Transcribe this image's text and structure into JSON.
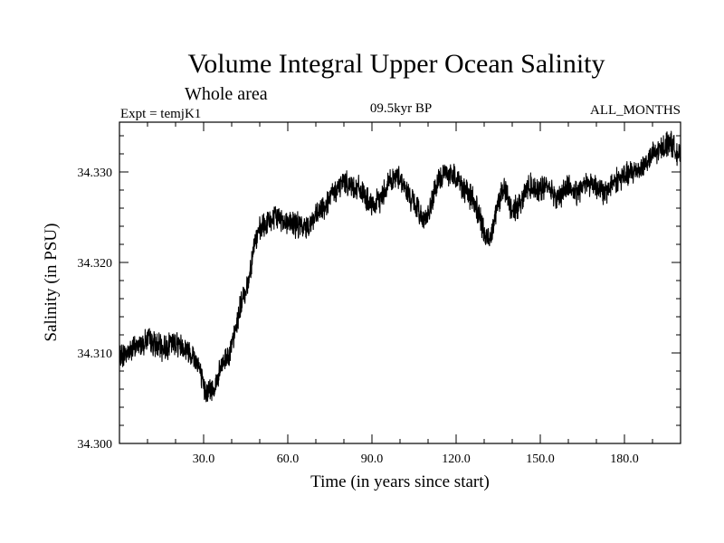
{
  "chart_data": {
    "type": "line",
    "title": "Volume Integral Upper Ocean Salinity",
    "subtitle": "Whole area",
    "annotations": {
      "left": "Expt = temjK1",
      "center": "09.5kyr BP",
      "right": "ALL_MONTHS"
    },
    "xlabel": "Time (in years since start)",
    "ylabel": "Salinity (in PSU)",
    "xlim": [
      0,
      200
    ],
    "ylim": [
      34.3,
      34.3355
    ],
    "x_ticks": [
      30,
      60,
      90,
      120,
      150,
      180
    ],
    "x_tick_labels": [
      "30.0",
      "60.0",
      "90.0",
      "120.0",
      "150.0",
      "180.0"
    ],
    "y_ticks": [
      34.3,
      34.31,
      34.32,
      34.33
    ],
    "y_tick_labels": [
      "34.300",
      "34.310",
      "34.320",
      "34.330"
    ],
    "grid": false,
    "series": [
      {
        "name": "Salinity",
        "color": "#000000",
        "x": [
          0,
          5,
          10,
          15,
          20,
          25,
          28,
          30,
          32,
          34,
          37,
          40,
          43,
          46,
          48,
          50,
          53,
          56,
          60,
          63,
          66,
          70,
          73,
          76,
          80,
          83,
          86,
          90,
          93,
          96,
          100,
          102,
          105,
          108,
          110,
          113,
          116,
          120,
          123,
          126,
          128,
          130,
          132,
          134,
          137,
          140,
          143,
          146,
          150,
          153,
          156,
          160,
          163,
          166,
          170,
          173,
          176,
          180,
          183,
          186,
          190,
          193,
          196,
          198,
          200
        ],
        "values": [
          34.3095,
          34.3105,
          34.3115,
          34.3105,
          34.3112,
          34.3102,
          34.309,
          34.306,
          34.3058,
          34.3062,
          34.309,
          34.3105,
          34.315,
          34.318,
          34.322,
          34.3235,
          34.3245,
          34.325,
          34.3245,
          34.3242,
          34.3238,
          34.325,
          34.3262,
          34.3275,
          34.329,
          34.3285,
          34.328,
          34.326,
          34.327,
          34.329,
          34.3295,
          34.328,
          34.3265,
          34.325,
          34.325,
          34.3285,
          34.33,
          34.3295,
          34.328,
          34.327,
          34.3255,
          34.323,
          34.3225,
          34.3255,
          34.3285,
          34.3255,
          34.3268,
          34.3285,
          34.328,
          34.3285,
          34.327,
          34.3285,
          34.3275,
          34.329,
          34.3285,
          34.3275,
          34.329,
          34.3295,
          34.33,
          34.3305,
          34.3318,
          34.3325,
          34.3335,
          34.3325,
          34.3315
        ]
      }
    ]
  }
}
